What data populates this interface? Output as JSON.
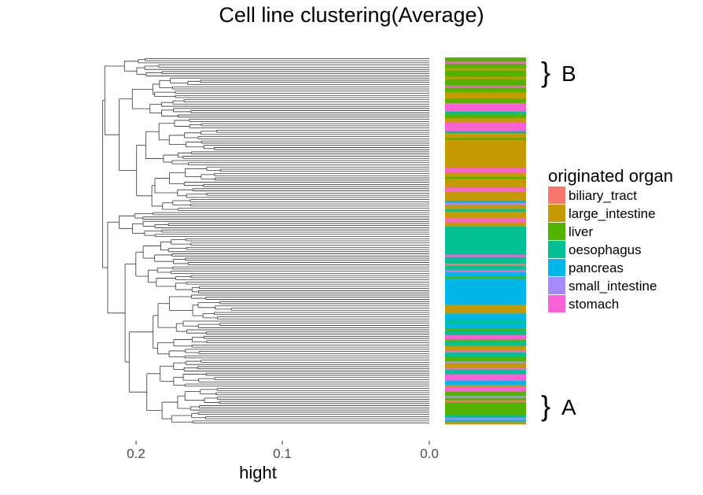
{
  "chart_data": {
    "type": "dendrogram",
    "title": "Cell line clustering(Average)",
    "xlabel": "hight",
    "x_ticks": [
      0.2,
      0.1,
      0.0
    ],
    "x_tick_labels": [
      "0.2",
      "0.1",
      "0.0"
    ],
    "xlim": [
      0.233,
      0.0
    ],
    "legend": {
      "title": "originated organ",
      "placement": "right",
      "entries": [
        {
          "name": "biliary_tract",
          "color": "#F8766D"
        },
        {
          "name": "large_intestine",
          "color": "#C49A00"
        },
        {
          "name": "liver",
          "color": "#53B400"
        },
        {
          "name": "oesophagus",
          "color": "#00C094"
        },
        {
          "name": "pancreas",
          "color": "#00B6EB"
        },
        {
          "name": "small_intestine",
          "color": "#A58AFF"
        },
        {
          "name": "stomach",
          "color": "#FB61D7"
        }
      ]
    },
    "cluster_labels": [
      {
        "bracket": "}",
        "label": "B",
        "rows": [
          0,
          10
        ]
      },
      {
        "bracket": "}",
        "label": "A",
        "rows": [
          155,
          168
        ]
      }
    ],
    "organ_bar_segments": [
      {
        "organ": "liver",
        "rows": 2
      },
      {
        "organ": "stomach",
        "rows": 1
      },
      {
        "organ": "liver",
        "rows": 2
      },
      {
        "organ": "large_intestine",
        "rows": 1
      },
      {
        "organ": "liver",
        "rows": 3
      },
      {
        "organ": "large_intestine",
        "rows": 1
      },
      {
        "organ": "liver",
        "rows": 3
      },
      {
        "organ": "stomach",
        "rows": 1
      },
      {
        "organ": "liver",
        "rows": 2
      },
      {
        "organ": "large_intestine",
        "rows": 3
      },
      {
        "organ": "liver",
        "rows": 2
      },
      {
        "organ": "stomach",
        "rows": 4
      },
      {
        "organ": "oesophagus",
        "rows": 1
      },
      {
        "organ": "liver",
        "rows": 2
      },
      {
        "organ": "large_intestine",
        "rows": 2
      },
      {
        "organ": "stomach",
        "rows": 4
      },
      {
        "organ": "oesophagus",
        "rows": 1
      },
      {
        "organ": "large_intestine",
        "rows": 2
      },
      {
        "organ": "liver",
        "rows": 1
      },
      {
        "organ": "large_intestine",
        "rows": 13
      },
      {
        "organ": "stomach",
        "rows": 2
      },
      {
        "organ": "large_intestine",
        "rows": 2
      },
      {
        "organ": "liver",
        "rows": 1
      },
      {
        "organ": "large_intestine",
        "rows": 4
      },
      {
        "organ": "stomach",
        "rows": 2
      },
      {
        "organ": "large_intestine",
        "rows": 4
      },
      {
        "organ": "pancreas",
        "rows": 1
      },
      {
        "organ": "small_intestine",
        "rows": 1
      },
      {
        "organ": "large_intestine",
        "rows": 2
      },
      {
        "organ": "oesophagus",
        "rows": 1
      },
      {
        "organ": "large_intestine",
        "rows": 3
      },
      {
        "organ": "stomach",
        "rows": 2
      },
      {
        "organ": "large_intestine",
        "rows": 2
      },
      {
        "organ": "oesophagus",
        "rows": 13
      },
      {
        "organ": "stomach",
        "rows": 1
      },
      {
        "organ": "oesophagus",
        "rows": 3
      },
      {
        "organ": "biliary_tract",
        "rows": 1
      },
      {
        "organ": "oesophagus",
        "rows": 2
      },
      {
        "organ": "stomach",
        "rows": 1
      },
      {
        "organ": "pancreas",
        "rows": 2
      },
      {
        "organ": "liver",
        "rows": 1
      },
      {
        "organ": "pancreas",
        "rows": 12
      },
      {
        "organ": "large_intestine",
        "rows": 4
      },
      {
        "organ": "pancreas",
        "rows": 3
      },
      {
        "organ": "oesophagus",
        "rows": 2
      },
      {
        "organ": "pancreas",
        "rows": 2
      },
      {
        "organ": "liver",
        "rows": 1
      },
      {
        "organ": "oesophagus",
        "rows": 2
      },
      {
        "organ": "stomach",
        "rows": 2
      },
      {
        "organ": "liver",
        "rows": 1
      },
      {
        "organ": "oesophagus",
        "rows": 2
      },
      {
        "organ": "large_intestine",
        "rows": 2
      },
      {
        "organ": "stomach",
        "rows": 1
      },
      {
        "organ": "oesophagus",
        "rows": 2
      },
      {
        "organ": "liver",
        "rows": 2
      },
      {
        "organ": "small_intestine",
        "rows": 1
      },
      {
        "organ": "large_intestine",
        "rows": 2
      },
      {
        "organ": "stomach",
        "rows": 1
      },
      {
        "organ": "oesophagus",
        "rows": 2
      },
      {
        "organ": "stomach",
        "rows": 3
      },
      {
        "organ": "pancreas",
        "rows": 2
      },
      {
        "organ": "large_intestine",
        "rows": 1
      },
      {
        "organ": "stomach",
        "rows": 2
      },
      {
        "organ": "liver",
        "rows": 2
      },
      {
        "organ": "small_intestine",
        "rows": 1
      },
      {
        "organ": "liver",
        "rows": 1
      },
      {
        "organ": "biliary_tract",
        "rows": 1
      },
      {
        "organ": "liver",
        "rows": 6
      },
      {
        "organ": "oesophagus",
        "rows": 1
      },
      {
        "organ": "small_intestine",
        "rows": 1
      },
      {
        "organ": "pancreas",
        "rows": 1
      },
      {
        "organ": "large_intestine",
        "rows": 1
      }
    ],
    "dendrogram_heights": [
      0.232,
      0.222,
      0.214,
      0.205,
      0.196,
      0.188,
      0.178,
      0.168,
      0.158,
      0.148,
      0.138,
      0.128,
      0.118,
      0.108,
      0.105
    ]
  }
}
